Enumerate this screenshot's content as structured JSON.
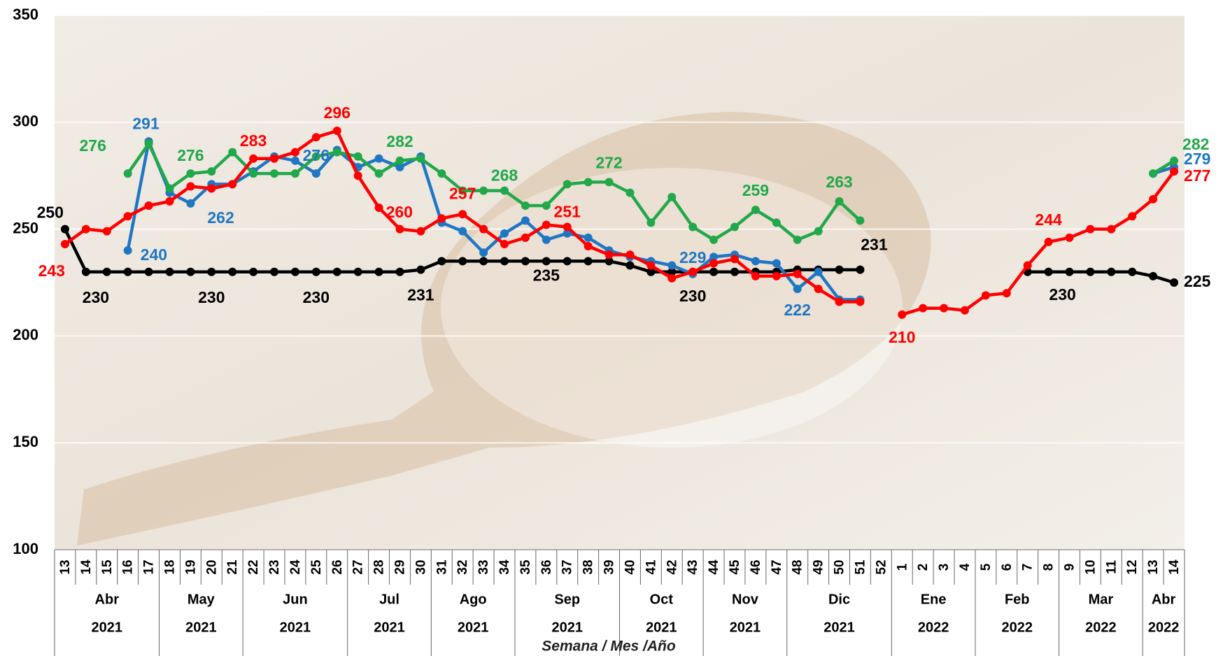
{
  "chart_data": {
    "type": "line",
    "x_title": "Semana / Mes /Año",
    "categories": [
      "13",
      "14",
      "15",
      "16",
      "17",
      "18",
      "19",
      "20",
      "21",
      "22",
      "23",
      "24",
      "25",
      "26",
      "27",
      "28",
      "29",
      "30",
      "31",
      "32",
      "33",
      "34",
      "35",
      "36",
      "37",
      "38",
      "39",
      "40",
      "41",
      "42",
      "43",
      "44",
      "45",
      "46",
      "47",
      "48",
      "49",
      "50",
      "51",
      "52",
      "1",
      "2",
      "3",
      "4",
      "5",
      "6",
      "7",
      "8",
      "9",
      "10",
      "11",
      "12",
      "13",
      "14"
    ],
    "months": [
      "Abr",
      null,
      null,
      null,
      null,
      "May",
      null,
      null,
      null,
      "Jun",
      null,
      null,
      null,
      null,
      "Jul",
      null,
      null,
      null,
      "Ago",
      null,
      null,
      null,
      "Sep",
      null,
      null,
      null,
      null,
      "Oct",
      null,
      null,
      null,
      "Nov",
      null,
      null,
      null,
      "Dic",
      null,
      null,
      null,
      null,
      "Ene",
      null,
      null,
      null,
      "Feb",
      null,
      null,
      null,
      "Mar",
      null,
      null,
      null,
      "Abr",
      null
    ],
    "years": [
      "2021",
      null,
      null,
      null,
      null,
      "2021",
      null,
      null,
      null,
      "2021",
      null,
      null,
      null,
      null,
      "2021",
      null,
      null,
      null,
      "2021",
      null,
      null,
      null,
      "2021",
      null,
      null,
      null,
      null,
      "2021",
      null,
      null,
      null,
      "2021",
      null,
      null,
      null,
      "2021",
      null,
      null,
      null,
      null,
      "2022",
      null,
      null,
      null,
      "2022",
      null,
      null,
      null,
      "2022",
      null,
      null,
      null,
      "2022",
      null
    ],
    "ylim": [
      100,
      350
    ],
    "yticks": [
      100,
      150,
      200,
      250,
      300,
      350
    ],
    "grid": true,
    "series": [
      {
        "color": "#000000",
        "values": [
          250,
          230,
          230,
          230,
          230,
          230,
          230,
          230,
          230,
          230,
          230,
          230,
          230,
          230,
          230,
          230,
          230,
          231,
          235,
          235,
          235,
          235,
          235,
          235,
          235,
          235,
          235,
          233,
          230,
          230,
          230,
          230,
          230,
          230,
          230,
          231,
          231,
          231,
          231,
          null,
          null,
          null,
          null,
          null,
          null,
          null,
          230,
          230,
          230,
          230,
          230,
          230,
          228,
          225
        ]
      },
      {
        "color": "#1f77c4",
        "values": [
          null,
          null,
          null,
          240,
          291,
          267,
          262,
          271,
          271,
          277,
          284,
          282,
          276,
          287,
          279,
          283,
          279,
          284,
          253,
          249,
          239,
          248,
          254,
          245,
          248,
          246,
          240,
          237,
          235,
          233,
          229,
          237,
          238,
          235,
          234,
          222,
          230,
          217,
          217,
          null,
          null,
          null,
          null,
          null,
          null,
          null,
          null,
          null,
          null,
          null,
          null,
          null,
          276,
          279
        ]
      },
      {
        "color": "#21a84a",
        "values": [
          null,
          null,
          null,
          276,
          290,
          269,
          276,
          277,
          286,
          276,
          276,
          276,
          284,
          286,
          284,
          276,
          282,
          283,
          276,
          268,
          268,
          268,
          261,
          261,
          271,
          272,
          272,
          267,
          253,
          265,
          251,
          245,
          251,
          259,
          253,
          245,
          249,
          263,
          254,
          null,
          null,
          null,
          null,
          null,
          null,
          null,
          null,
          null,
          null,
          null,
          null,
          null,
          276,
          282
        ]
      },
      {
        "color": "#ff0000",
        "values": [
          243,
          250,
          249,
          256,
          261,
          263,
          270,
          269,
          271,
          283,
          283,
          286,
          293,
          296,
          275,
          260,
          250,
          249,
          255,
          257,
          250,
          243,
          246,
          252,
          251,
          242,
          238,
          238,
          233,
          227,
          230,
          234,
          236,
          228,
          228,
          229,
          222,
          216,
          216,
          null,
          210,
          213,
          213,
          212,
          219,
          220,
          233,
          244,
          246,
          250,
          250,
          256,
          264,
          277
        ]
      }
    ]
  }
}
